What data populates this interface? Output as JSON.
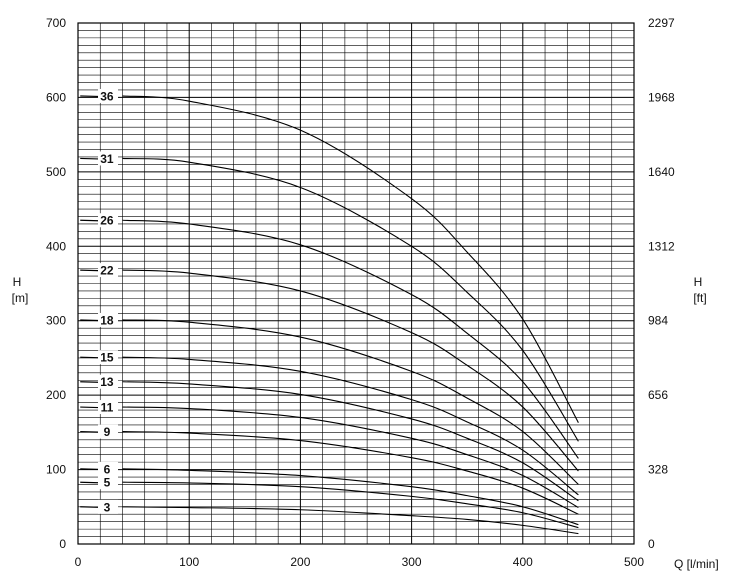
{
  "chart_data": {
    "type": "line",
    "title": "",
    "xlabel": "Q [l/min]",
    "ylabel_left": {
      "symbol": "H",
      "unit": "[m]"
    },
    "ylabel_right": {
      "symbol": "H",
      "unit": "[ft]"
    },
    "xlim": [
      0,
      500
    ],
    "ylim": [
      0,
      700
    ],
    "x_ticks": [
      "0",
      "100",
      "200",
      "300",
      "400",
      "500"
    ],
    "y_ticks_left": [
      "0",
      "100",
      "200",
      "300",
      "400",
      "500",
      "600",
      "700"
    ],
    "y_ticks_right": [
      "0",
      "328",
      "656",
      "984",
      "1312",
      "1640",
      "1968",
      "2297"
    ],
    "grid": true,
    "series": [
      {
        "name": "3",
        "label_y": 50,
        "points": [
          [
            40,
            50
          ],
          [
            100,
            49
          ],
          [
            200,
            46
          ],
          [
            300,
            38
          ],
          [
            350,
            33
          ],
          [
            400,
            25
          ],
          [
            450,
            14
          ]
        ]
      },
      {
        "name": "5",
        "label_y": 83,
        "points": [
          [
            40,
            83
          ],
          [
            100,
            82
          ],
          [
            200,
            77
          ],
          [
            300,
            64
          ],
          [
            350,
            54
          ],
          [
            400,
            42
          ],
          [
            450,
            22
          ]
        ]
      },
      {
        "name": "6",
        "label_y": 101,
        "points": [
          [
            40,
            101
          ],
          [
            100,
            99
          ],
          [
            200,
            92
          ],
          [
            300,
            77
          ],
          [
            350,
            65
          ],
          [
            400,
            50
          ],
          [
            450,
            26
          ]
        ]
      },
      {
        "name": "9",
        "label_y": 151,
        "points": [
          [
            40,
            151
          ],
          [
            100,
            149
          ],
          [
            200,
            139
          ],
          [
            300,
            116
          ],
          [
            350,
            98
          ],
          [
            400,
            75
          ],
          [
            450,
            40
          ]
        ]
      },
      {
        "name": "11",
        "label_y": 184,
        "points": [
          [
            40,
            184
          ],
          [
            100,
            182
          ],
          [
            200,
            170
          ],
          [
            300,
            142
          ],
          [
            350,
            120
          ],
          [
            400,
            92
          ],
          [
            450,
            49
          ]
        ]
      },
      {
        "name": "13",
        "label_y": 218,
        "points": [
          [
            40,
            218
          ],
          [
            100,
            215
          ],
          [
            200,
            201
          ],
          [
            300,
            168
          ],
          [
            350,
            142
          ],
          [
            400,
            109
          ],
          [
            450,
            58
          ]
        ]
      },
      {
        "name": "15",
        "label_y": 251,
        "points": [
          [
            40,
            251
          ],
          [
            100,
            248
          ],
          [
            200,
            232
          ],
          [
            300,
            194
          ],
          [
            350,
            164
          ],
          [
            400,
            126
          ],
          [
            450,
            66
          ]
        ]
      },
      {
        "name": "18",
        "label_y": 301,
        "points": [
          [
            40,
            301
          ],
          [
            100,
            298
          ],
          [
            200,
            278
          ],
          [
            300,
            232
          ],
          [
            350,
            196
          ],
          [
            400,
            151
          ],
          [
            450,
            80
          ]
        ]
      },
      {
        "name": "22",
        "label_y": 368,
        "points": [
          [
            40,
            368
          ],
          [
            100,
            364
          ],
          [
            200,
            340
          ],
          [
            300,
            284
          ],
          [
            350,
            240
          ],
          [
            400,
            184
          ],
          [
            450,
            98
          ]
        ]
      },
      {
        "name": "26",
        "label_y": 435,
        "points": [
          [
            40,
            435
          ],
          [
            100,
            430
          ],
          [
            200,
            402
          ],
          [
            300,
            335
          ],
          [
            350,
            283
          ],
          [
            400,
            218
          ],
          [
            450,
            115
          ]
        ]
      },
      {
        "name": "31",
        "label_y": 518,
        "points": [
          [
            40,
            518
          ],
          [
            100,
            513
          ],
          [
            200,
            479
          ],
          [
            300,
            400
          ],
          [
            350,
            338
          ],
          [
            400,
            260
          ],
          [
            450,
            138
          ]
        ]
      },
      {
        "name": "36",
        "label_y": 602,
        "points": [
          [
            40,
            602
          ],
          [
            100,
            595
          ],
          [
            200,
            556
          ],
          [
            300,
            464
          ],
          [
            350,
            392
          ],
          [
            400,
            302
          ],
          [
            450,
            163
          ]
        ]
      }
    ]
  }
}
